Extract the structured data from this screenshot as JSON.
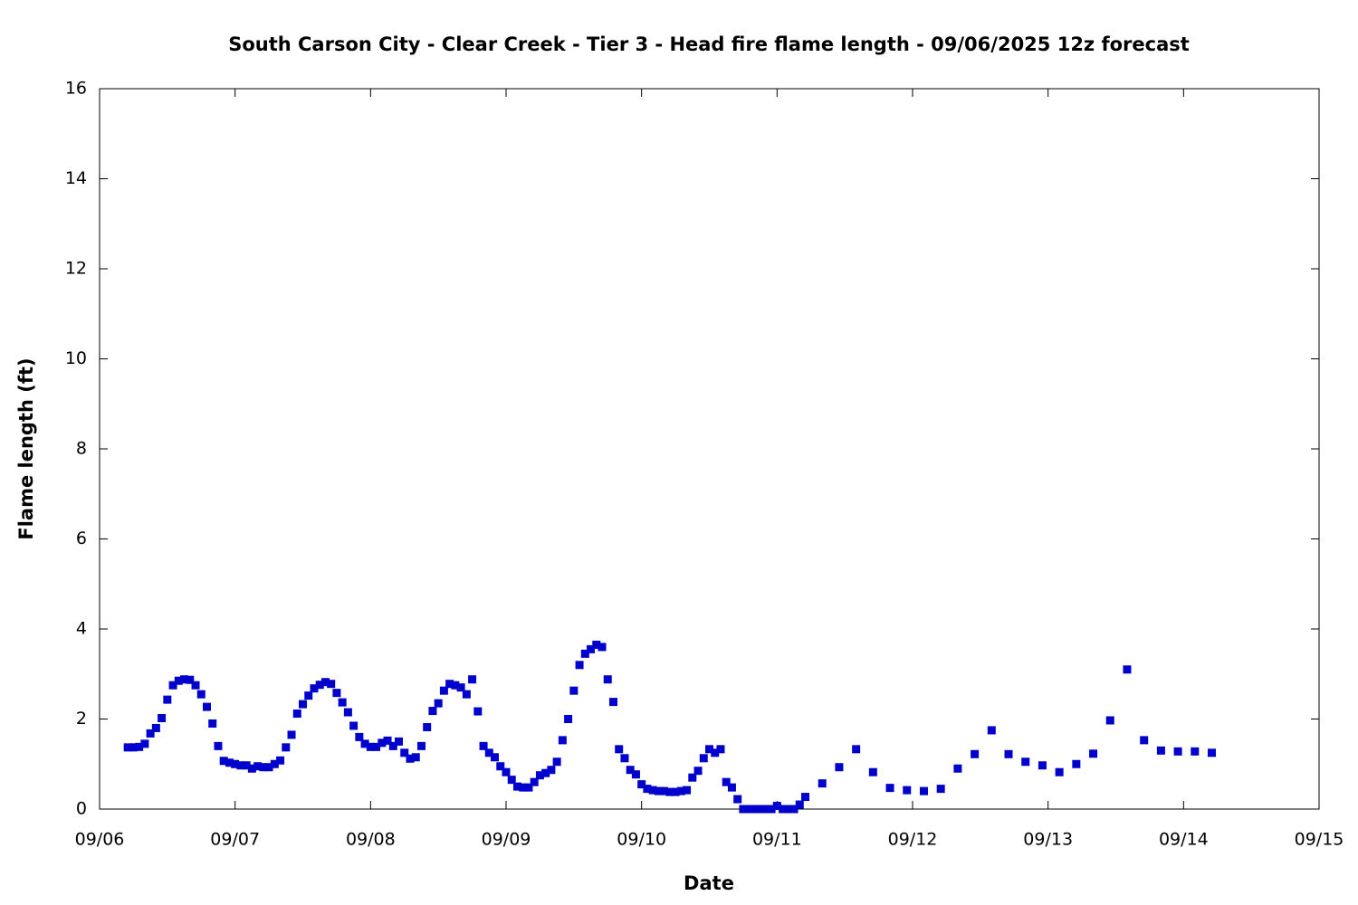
{
  "chart_data": {
    "type": "scatter",
    "title": "South Carson City - Clear Creek - Tier 3 - Head fire flame length - 09/06/2025 12z forecast",
    "x_label": "Date",
    "y_label": "Flame length (ft)",
    "xlim": [
      0,
      216
    ],
    "xticks": [
      {
        "value": 0,
        "label": "09/06"
      },
      {
        "value": 24,
        "label": "09/07"
      },
      {
        "value": 48,
        "label": "09/08"
      },
      {
        "value": 72,
        "label": "09/09"
      },
      {
        "value": 96,
        "label": "09/10"
      },
      {
        "value": 120,
        "label": "09/11"
      },
      {
        "value": 144,
        "label": "09/12"
      },
      {
        "value": 168,
        "label": "09/13"
      },
      {
        "value": 192,
        "label": "09/14"
      },
      {
        "value": 216,
        "label": "09/15"
      }
    ],
    "ylim": [
      0,
      16
    ],
    "yticks": [
      0,
      2,
      4,
      6,
      8,
      10,
      12,
      14,
      16
    ],
    "series": [
      {
        "color": "#0000cc",
        "x": [
          5,
          6,
          7,
          8,
          9,
          10,
          11,
          12,
          13,
          14,
          15,
          16,
          17,
          18,
          19,
          20,
          21,
          22,
          23,
          24,
          25,
          26,
          27,
          28,
          29,
          30,
          31,
          32,
          33,
          34,
          35,
          36,
          37,
          38,
          39,
          40,
          41,
          42,
          43,
          44,
          45,
          46,
          47,
          48,
          49,
          50,
          51,
          52,
          53,
          54,
          55,
          56,
          57,
          58,
          59,
          60,
          61,
          62,
          63,
          64,
          65,
          66,
          67,
          68,
          69,
          70,
          71,
          72,
          73,
          74,
          75,
          76,
          77,
          78,
          79,
          80,
          81,
          82,
          83,
          84,
          85,
          86,
          87,
          88,
          89,
          90,
          91,
          92,
          93,
          94,
          95,
          96,
          97,
          98,
          99,
          100,
          101,
          102,
          103,
          104,
          105,
          106,
          107,
          108,
          109,
          110,
          111,
          112,
          113,
          114,
          115,
          116,
          117,
          118,
          119,
          120,
          121,
          122,
          123,
          124,
          125,
          128,
          131,
          134,
          137,
          140,
          143,
          146,
          149,
          152,
          155,
          158,
          161,
          164,
          167,
          170,
          173,
          176,
          179,
          182,
          185,
          188,
          191,
          194,
          197
        ],
        "values": [
          1.37,
          1.37,
          1.38,
          1.45,
          1.68,
          1.8,
          2.02,
          2.43,
          2.75,
          2.85,
          2.88,
          2.87,
          2.75,
          2.55,
          2.27,
          1.9,
          1.4,
          1.07,
          1.03,
          1.0,
          0.97,
          0.97,
          0.9,
          0.95,
          0.93,
          0.93,
          1.0,
          1.08,
          1.37,
          1.65,
          2.12,
          2.33,
          2.52,
          2.68,
          2.76,
          2.82,
          2.78,
          2.58,
          2.37,
          2.15,
          1.85,
          1.6,
          1.45,
          1.38,
          1.38,
          1.47,
          1.52,
          1.4,
          1.5,
          1.25,
          1.12,
          1.15,
          1.4,
          1.82,
          2.18,
          2.35,
          2.63,
          2.78,
          2.75,
          2.7,
          2.55,
          2.88,
          2.17,
          1.4,
          1.25,
          1.15,
          0.95,
          0.82,
          0.65,
          0.5,
          0.48,
          0.48,
          0.6,
          0.75,
          0.8,
          0.87,
          1.05,
          1.53,
          2.0,
          2.63,
          3.2,
          3.45,
          3.55,
          3.65,
          3.6,
          2.88,
          2.38,
          1.33,
          1.13,
          0.87,
          0.77,
          0.55,
          0.45,
          0.42,
          0.4,
          0.4,
          0.38,
          0.38,
          0.4,
          0.42,
          0.7,
          0.85,
          1.13,
          1.33,
          1.25,
          1.33,
          0.6,
          0.48,
          0.22,
          0,
          0,
          0,
          0,
          0,
          0,
          0.07,
          0,
          0,
          0,
          0.1,
          0.27,
          0.57,
          0.93,
          1.33,
          0.82,
          0.47,
          0.42,
          0.4,
          0.45,
          0.9,
          1.22,
          1.75,
          1.22,
          1.05,
          0.97,
          0.82,
          1.0,
          1.23,
          1.97,
          3.1,
          1.53,
          1.3,
          1.28,
          1.28,
          1.25
        ]
      }
    ]
  }
}
